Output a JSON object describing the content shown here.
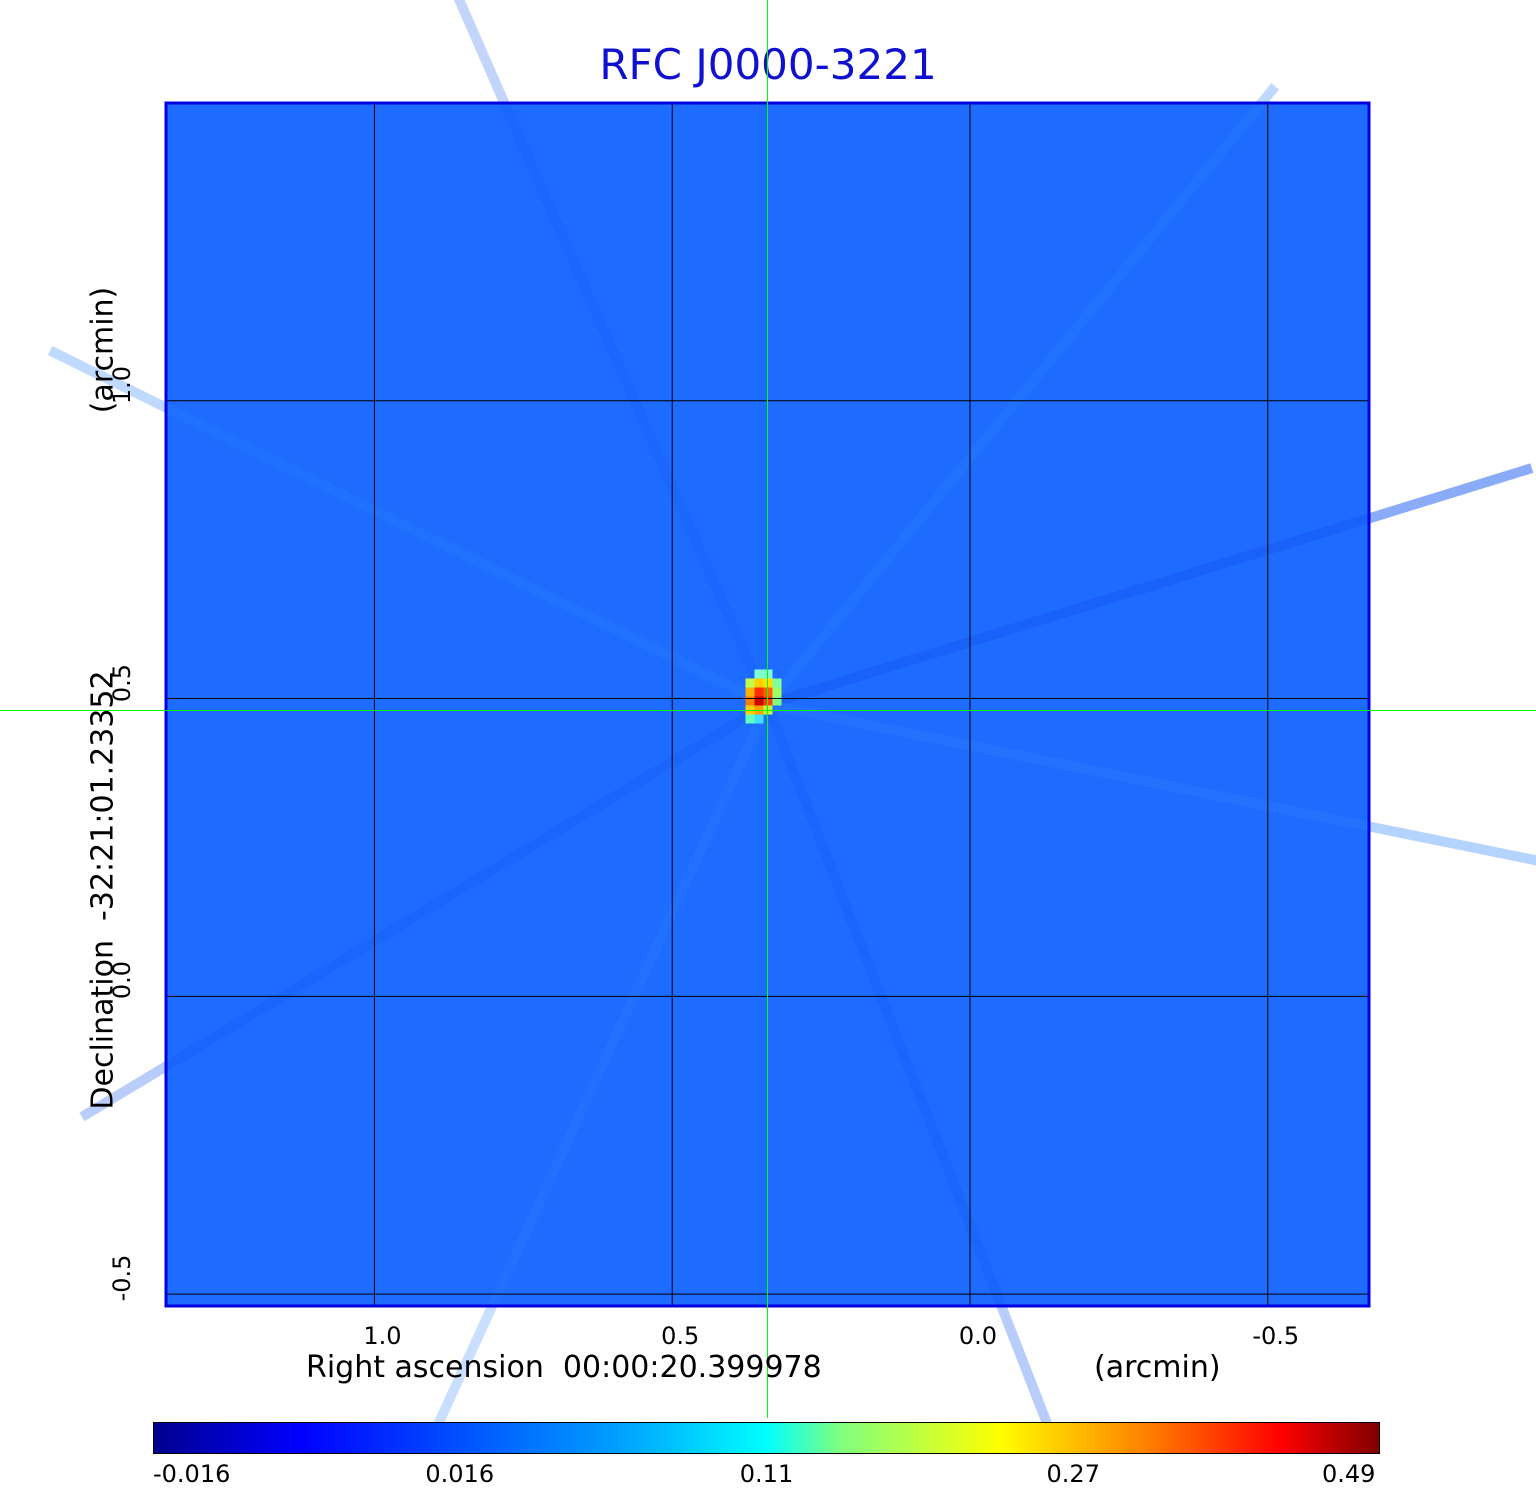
{
  "colors": {
    "title": "#1010d0",
    "background_map": "#1e6bff",
    "frame": "#0000e0",
    "grid": "#000000",
    "crosshair": "#00ff00"
  },
  "chart_data": {
    "type": "heatmap",
    "title": "RFC J0000-3221",
    "xlabel": "Right ascension  00:00:20.399978",
    "xunit": "(arcmin)",
    "ylabel": "Declination  -32:21:01.23352",
    "yunit": "(arcmin)",
    "xlim": [
      1.35,
      -0.67
    ],
    "ylim": [
      -0.52,
      1.5
    ],
    "x_ticks": [
      "1.0",
      "0.5",
      "0.0",
      "-0.5"
    ],
    "x_tick_values": [
      1.0,
      0.5,
      0.0,
      -0.5
    ],
    "y_ticks": [
      "-0.5",
      "0.0",
      "0.5",
      "1.0"
    ],
    "y_tick_values": [
      -0.5,
      0.0,
      0.5,
      1.0
    ],
    "grid": true,
    "crosshair": {
      "x": 0.34,
      "y": 0.48
    },
    "peak": {
      "x": 0.34,
      "y": 0.49,
      "value": 0.49
    },
    "colorbar": {
      "ticks": [
        "-0.016",
        "0.016",
        "0.11",
        "0.27",
        "0.49"
      ],
      "min": -0.016,
      "max": 0.49
    }
  }
}
